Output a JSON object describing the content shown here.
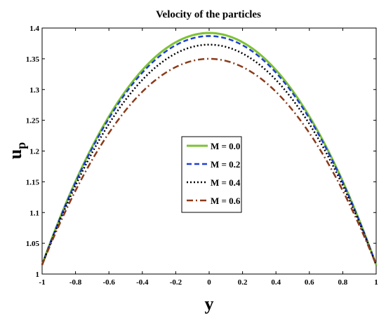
{
  "chart_data": {
    "type": "line",
    "title": "Velocity of the particles",
    "xlabel": "y",
    "ylabel": {
      "main": "u",
      "subscript": "p"
    },
    "xlim": [
      -1,
      1
    ],
    "ylim": [
      1,
      1.4
    ],
    "xticks": [
      "-1",
      "-0.8",
      "-0.6",
      "-0.4",
      "-0.2",
      "0",
      "0.2",
      "0.4",
      "0.6",
      "0.8",
      "1"
    ],
    "yticks": [
      "1",
      "1.05",
      "1.1",
      "1.15",
      "1.2",
      "1.25",
      "1.3",
      "1.35",
      "1.4"
    ],
    "grid": false,
    "legend_position": "center",
    "series": [
      {
        "name": "M = 0.0",
        "color": "#7dc234",
        "style": "solid",
        "x": [
          -1,
          -0.8,
          -0.6,
          -0.4,
          -0.2,
          0,
          0.2,
          0.4,
          0.6,
          0.8,
          1
        ],
        "y": [
          1.015,
          1.142,
          1.241,
          1.312,
          1.354,
          1.392,
          1.354,
          1.312,
          1.241,
          1.142,
          1.015
        ]
      },
      {
        "name": "M = 0.2",
        "color": "#1f3fd0",
        "style": "dashed",
        "x": [
          -1,
          -0.8,
          -0.6,
          -0.4,
          -0.2,
          0,
          0.2,
          0.4,
          0.6,
          0.8,
          1
        ],
        "y": [
          1.015,
          1.139,
          1.237,
          1.308,
          1.35,
          1.387,
          1.35,
          1.308,
          1.237,
          1.139,
          1.015
        ]
      },
      {
        "name": "M = 0.4",
        "color": "#000000",
        "style": "dotted",
        "x": [
          -1,
          -0.8,
          -0.6,
          -0.4,
          -0.2,
          0,
          0.2,
          0.4,
          0.6,
          0.8,
          1
        ],
        "y": [
          1.015,
          1.133,
          1.227,
          1.295,
          1.336,
          1.373,
          1.336,
          1.295,
          1.227,
          1.133,
          1.015
        ]
      },
      {
        "name": "M = 0.6",
        "color": "#8b3a1a",
        "style": "dashdot",
        "x": [
          -1,
          -0.8,
          -0.6,
          -0.4,
          -0.2,
          0,
          0.2,
          0.4,
          0.6,
          0.8,
          1
        ],
        "y": [
          1.015,
          1.126,
          1.213,
          1.277,
          1.316,
          1.35,
          1.316,
          1.277,
          1.213,
          1.126,
          1.015
        ]
      }
    ]
  }
}
